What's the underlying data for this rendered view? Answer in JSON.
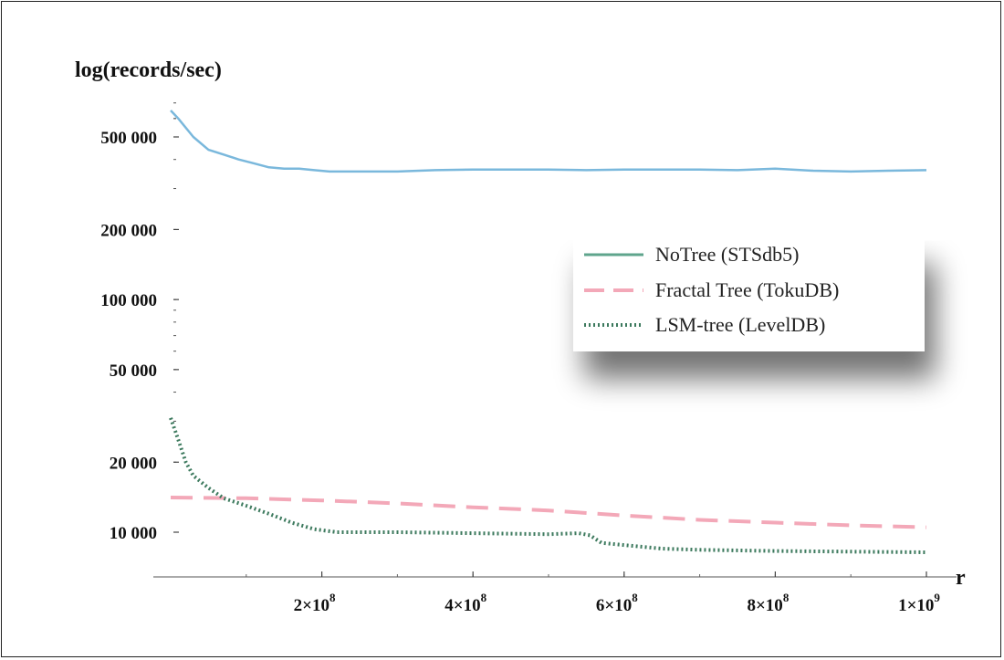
{
  "chart_data": {
    "type": "line",
    "ylabel": "log(records/sec)",
    "xlabel": "r",
    "y_scale": "log",
    "ylim": [
      8000,
      700000
    ],
    "xlim": [
      0,
      1000000000
    ],
    "y_ticks": [
      {
        "value": 10000,
        "label": "10 000"
      },
      {
        "value": 20000,
        "label": "20 000"
      },
      {
        "value": 50000,
        "label": "50 000"
      },
      {
        "value": 100000,
        "label": "100 000"
      },
      {
        "value": 200000,
        "label": "200 000"
      },
      {
        "value": 500000,
        "label": "500 000"
      }
    ],
    "x_ticks": [
      {
        "value": 200000000,
        "mantissa": "2",
        "exp": "8"
      },
      {
        "value": 400000000,
        "mantissa": "4",
        "exp": "8"
      },
      {
        "value": 600000000,
        "mantissa": "6",
        "exp": "8"
      },
      {
        "value": 800000000,
        "mantissa": "8",
        "exp": "8"
      },
      {
        "value": 1000000000,
        "mantissa": "1",
        "exp": "9"
      }
    ],
    "legend_position": "right",
    "series": [
      {
        "name": "NoTree (STSdb5)",
        "color": "#7ab8dc",
        "style": "solid",
        "x": [
          0,
          10000000,
          30000000,
          50000000,
          70000000,
          90000000,
          110000000,
          130000000,
          150000000,
          170000000,
          190000000,
          210000000,
          250000000,
          300000000,
          350000000,
          400000000,
          450000000,
          500000000,
          550000000,
          600000000,
          650000000,
          700000000,
          750000000,
          800000000,
          850000000,
          900000000,
          950000000,
          1000000000
        ],
        "values": [
          650000,
          600000,
          500000,
          440000,
          420000,
          400000,
          385000,
          370000,
          365000,
          365000,
          360000,
          355000,
          355000,
          355000,
          360000,
          362000,
          362000,
          362000,
          360000,
          362000,
          362000,
          362000,
          360000,
          365000,
          358000,
          355000,
          358000,
          360000
        ]
      },
      {
        "name": "Fractal Tree (TokuDB)",
        "color": "#f3a8b8",
        "style": "dashed",
        "x": [
          0,
          100000000,
          200000000,
          300000000,
          400000000,
          500000000,
          600000000,
          700000000,
          800000000,
          900000000,
          1000000000
        ],
        "values": [
          14100,
          14000,
          13700,
          13300,
          12800,
          12400,
          11800,
          11300,
          11000,
          10700,
          10500
        ]
      },
      {
        "name": "LSM-tree (LevelDB)",
        "color": "#3d7a5e",
        "style": "dotted",
        "x": [
          0,
          10000000,
          20000000,
          30000000,
          50000000,
          70000000,
          100000000,
          130000000,
          160000000,
          190000000,
          220000000,
          300000000,
          400000000,
          500000000,
          540000000,
          555000000,
          570000000,
          600000000,
          650000000,
          700000000,
          800000000,
          900000000,
          1000000000
        ],
        "values": [
          31000,
          25000,
          20000,
          17500,
          15500,
          14000,
          13000,
          12000,
          11000,
          10300,
          10000,
          10000,
          9900,
          9800,
          9900,
          9700,
          9000,
          8800,
          8500,
          8400,
          8300,
          8250,
          8200
        ]
      }
    ]
  }
}
